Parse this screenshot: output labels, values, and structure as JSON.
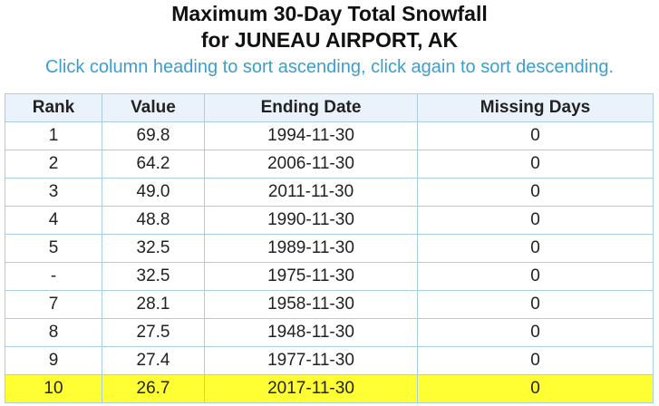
{
  "header": {
    "title_line1": "Maximum 30-Day Total Snowfall",
    "title_line2": "for JUNEAU AIRPORT, AK",
    "instruction": "Click column heading to sort ascending, click again to sort descending."
  },
  "table": {
    "columns": [
      "Rank",
      "Value",
      "Ending Date",
      "Missing Days"
    ],
    "rows": [
      [
        "1",
        "69.8",
        "1994-11-30",
        "0"
      ],
      [
        "2",
        "64.2",
        "2006-11-30",
        "0"
      ],
      [
        "3",
        "49.0",
        "2011-11-30",
        "0"
      ],
      [
        "4",
        "48.8",
        "1990-11-30",
        "0"
      ],
      [
        "5",
        "32.5",
        "1989-11-30",
        "0"
      ],
      [
        "-",
        "32.5",
        "1975-11-30",
        "0"
      ],
      [
        "7",
        "28.1",
        "1958-11-30",
        "0"
      ],
      [
        "8",
        "27.5",
        "1948-11-30",
        "0"
      ],
      [
        "9",
        "27.4",
        "1977-11-30",
        "0"
      ],
      [
        "10",
        "26.7",
        "2017-11-30",
        "0"
      ]
    ]
  }
}
